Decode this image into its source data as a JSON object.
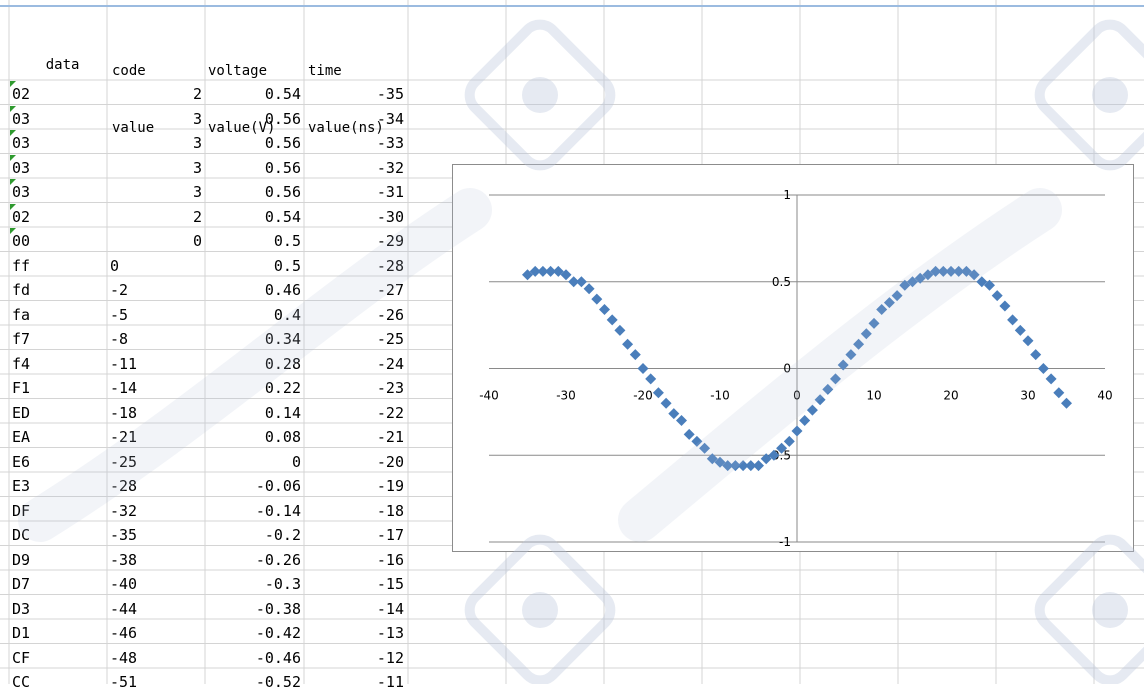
{
  "table": {
    "headers": [
      {
        "line1": "data",
        "line2": ""
      },
      {
        "line1": "code",
        "line2": "value"
      },
      {
        "line1": "voltage",
        "line2": "value(V)"
      },
      {
        "line1": "time",
        "line2": "value(ns)"
      }
    ],
    "rows": [
      {
        "data": "02",
        "code": "2",
        "voltage": "0.54",
        "time": "-35",
        "text_flag": true
      },
      {
        "data": "03",
        "code": "3",
        "voltage": "0.56",
        "time": "-34",
        "text_flag": true
      },
      {
        "data": "03",
        "code": "3",
        "voltage": "0.56",
        "time": "-33",
        "text_flag": true
      },
      {
        "data": "03",
        "code": "3",
        "voltage": "0.56",
        "time": "-32",
        "text_flag": true
      },
      {
        "data": "03",
        "code": "3",
        "voltage": "0.56",
        "time": "-31",
        "text_flag": true
      },
      {
        "data": "02",
        "code": "2",
        "voltage": "0.54",
        "time": "-30",
        "text_flag": true
      },
      {
        "data": "00",
        "code": "0",
        "voltage": "0.5",
        "time": "-29",
        "text_flag": true
      },
      {
        "data": "ff",
        "code": "0",
        "voltage": "0.5",
        "time": "-28",
        "text_flag": false
      },
      {
        "data": "fd",
        "code": "-2",
        "voltage": "0.46",
        "time": "-27",
        "text_flag": false
      },
      {
        "data": "fa",
        "code": "-5",
        "voltage": "0.4",
        "time": "-26",
        "text_flag": false
      },
      {
        "data": "f7",
        "code": "-8",
        "voltage": "0.34",
        "time": "-25",
        "text_flag": false
      },
      {
        "data": "f4",
        "code": "-11",
        "voltage": "0.28",
        "time": "-24",
        "text_flag": false
      },
      {
        "data": "F1",
        "code": "-14",
        "voltage": "0.22",
        "time": "-23",
        "text_flag": false
      },
      {
        "data": "ED",
        "code": "-18",
        "voltage": "0.14",
        "time": "-22",
        "text_flag": false
      },
      {
        "data": "EA",
        "code": "-21",
        "voltage": "0.08",
        "time": "-21",
        "text_flag": false
      },
      {
        "data": "E6",
        "code": "-25",
        "voltage": "0",
        "time": "-20",
        "text_flag": false
      },
      {
        "data": "E3",
        "code": "-28",
        "voltage": "-0.06",
        "time": "-19",
        "text_flag": false
      },
      {
        "data": "DF",
        "code": "-32",
        "voltage": "-0.14",
        "time": "-18",
        "text_flag": false
      },
      {
        "data": "DC",
        "code": "-35",
        "voltage": "-0.2",
        "time": "-17",
        "text_flag": false
      },
      {
        "data": "D9",
        "code": "-38",
        "voltage": "-0.26",
        "time": "-16",
        "text_flag": false
      },
      {
        "data": "D7",
        "code": "-40",
        "voltage": "-0.3",
        "time": "-15",
        "text_flag": false
      },
      {
        "data": "D3",
        "code": "-44",
        "voltage": "-0.38",
        "time": "-14",
        "text_flag": false
      },
      {
        "data": "D1",
        "code": "-46",
        "voltage": "-0.42",
        "time": "-13",
        "text_flag": false
      },
      {
        "data": "CF",
        "code": "-48",
        "voltage": "-0.46",
        "time": "-12",
        "text_flag": false
      },
      {
        "data": "CC",
        "code": "-51",
        "voltage": "-0.52",
        "time": "-11",
        "text_flag": false
      }
    ]
  },
  "chart_data": {
    "type": "scatter",
    "title": "",
    "xlabel": "",
    "ylabel": "",
    "xlim": [
      -40,
      40
    ],
    "ylim": [
      -1,
      1
    ],
    "x_ticks": [
      "-40",
      "-30",
      "-20",
      "-10",
      "0",
      "10",
      "20",
      "30",
      "40"
    ],
    "y_ticks": [
      "1",
      "0.5",
      "0",
      "-0.5",
      "-1"
    ],
    "grid": "horizontal",
    "legend": "none",
    "marker": "diamond",
    "marker_color": "#4a7ebb",
    "series": [
      {
        "x": [
          -35,
          -34,
          -33,
          -32,
          -31,
          -30,
          -29,
          -28,
          -27,
          -26,
          -25,
          -24,
          -23,
          -22,
          -21,
          -20,
          -19,
          -18,
          -17,
          -16,
          -15,
          -14,
          -13,
          -12,
          -11,
          -10,
          -9,
          -8,
          -7,
          -6,
          -5,
          -4,
          -3,
          -2,
          -1,
          0,
          1,
          2,
          3,
          4,
          5,
          6,
          7,
          8,
          9,
          10,
          11,
          12,
          13,
          14,
          15,
          16,
          17,
          18,
          19,
          20,
          21,
          22,
          23,
          24,
          25,
          26,
          27,
          28,
          29,
          30,
          31,
          32,
          33,
          34,
          35
        ],
        "y": [
          0.54,
          0.56,
          0.56,
          0.56,
          0.56,
          0.54,
          0.5,
          0.5,
          0.46,
          0.4,
          0.34,
          0.28,
          0.22,
          0.14,
          0.08,
          0,
          -0.06,
          -0.14,
          -0.2,
          -0.26,
          -0.3,
          -0.38,
          -0.42,
          -0.46,
          -0.52,
          -0.54,
          -0.56,
          -0.56,
          -0.56,
          -0.56,
          -0.56,
          -0.52,
          -0.5,
          -0.46,
          -0.42,
          -0.36,
          -0.3,
          -0.24,
          -0.18,
          -0.12,
          -0.06,
          0.02,
          0.08,
          0.14,
          0.2,
          0.26,
          0.34,
          0.38,
          0.42,
          0.48,
          0.5,
          0.52,
          0.54,
          0.56,
          0.56,
          0.56,
          0.56,
          0.56,
          0.54,
          0.5,
          0.48,
          0.42,
          0.36,
          0.28,
          0.22,
          0.16,
          0.08,
          0,
          -0.06,
          -0.14,
          -0.2
        ]
      }
    ]
  },
  "colors": {
    "gridline": "#d4d4d4",
    "header_separator": "#9bbbe0",
    "text_flag": "#2f9a2f",
    "watermark": "#b7c3d9"
  }
}
